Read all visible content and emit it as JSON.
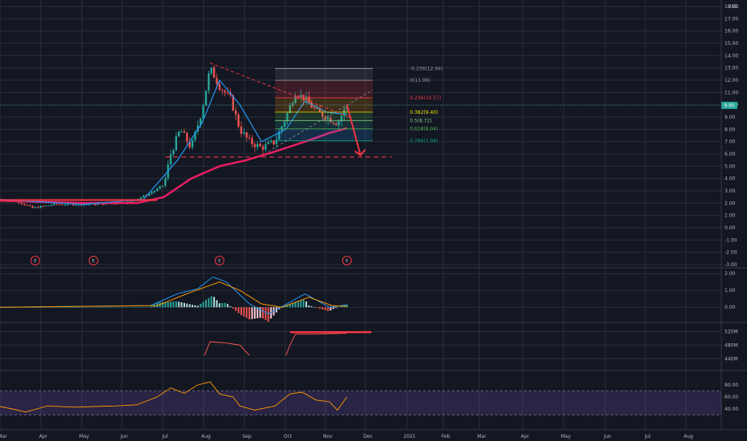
{
  "header": {
    "currency": "USD"
  },
  "price_badge": {
    "value": "9.95",
    "color": "#26a69a"
  },
  "events": [
    {
      "label": "E",
      "x": "Mar 27"
    },
    {
      "label": "E",
      "x": "May 9"
    },
    {
      "label": "E",
      "x": "Aug 10"
    },
    {
      "label": "E",
      "x": "Nov 12"
    }
  ],
  "fib_levels": [
    {
      "label": "-0.236(12.94)",
      "price": 12.94,
      "color": "#9598a1"
    },
    {
      "label": "0(11.99)",
      "price": 11.99,
      "color": "#9598a1"
    },
    {
      "label": "0.236(10.57)",
      "price": 10.57,
      "color": "#f23645"
    },
    {
      "label": "0.382(9.40)",
      "price": 9.4,
      "color": "#f7e600"
    },
    {
      "label": "0.5(8.72)",
      "price": 8.72,
      "color": "#81c784"
    },
    {
      "label": "0.618(8.04)",
      "price": 8.04,
      "color": "#4caf50"
    },
    {
      "label": "0.786(7.08)",
      "price": 7.08,
      "color": "#089981"
    }
  ],
  "colors": {
    "background": "#131722",
    "grid": "#2a2e39",
    "up": "#26a69a",
    "down": "#ef5350",
    "ma_short": "#2196f3",
    "ma_long": "#e91e63",
    "annotation": "#f23645",
    "rsi_line": "#ff9800",
    "rsi_band": "#7e57c2"
  },
  "chart_data": [
    {
      "type": "candlestick",
      "panel": "price",
      "y_unit": "USD",
      "ylim": [
        -3.0,
        18.0
      ],
      "y_ticks": [
        "18.00",
        "17.00",
        "16.00",
        "15.00",
        "14.00",
        "13.00",
        "12.00",
        "11.00",
        "10.00",
        "9.00",
        "8.00",
        "7.00",
        "6.00",
        "5.00",
        "4.00",
        "3.00",
        "2.00",
        "1.00",
        "0.00",
        "-1.00",
        "-2.00",
        "-3.00"
      ],
      "x_ticks": [
        "Mar",
        "Apr",
        "May",
        "Jun",
        "Jul",
        "Aug",
        "Sep",
        "Oct",
        "Nov",
        "Dec",
        "2021",
        "Feb",
        "Mar",
        "Apr",
        "May",
        "Jun",
        "Jul",
        "Aug"
      ],
      "x_range": [
        "Mar 1",
        "Aug 31"
      ],
      "approx_close": [
        [
          "Mar 1",
          2.3
        ],
        [
          "Mar 15",
          2.1
        ],
        [
          "Mar 25",
          1.6
        ],
        [
          "Apr 10",
          1.9
        ],
        [
          "Apr 25",
          1.9
        ],
        [
          "May 10",
          1.9
        ],
        [
          "May 25",
          2.0
        ],
        [
          "Jun 5",
          2.1
        ],
        [
          "Jun 20",
          2.8
        ],
        [
          "Jun 30",
          3.5
        ],
        [
          "Jul 5",
          6.0
        ],
        [
          "Jul 12",
          8.0
        ],
        [
          "Jul 20",
          6.5
        ],
        [
          "Jul 28",
          9.5
        ],
        [
          "Aug 3",
          13.0
        ],
        [
          "Aug 10",
          11.5
        ],
        [
          "Aug 18",
          10.5
        ],
        [
          "Aug 25",
          8.0
        ],
        [
          "Sep 1",
          7.0
        ],
        [
          "Sep 10",
          6.5
        ],
        [
          "Sep 20",
          7.0
        ],
        [
          "Sep 28",
          9.0
        ],
        [
          "Oct 5",
          11.0
        ],
        [
          "Oct 12",
          10.5
        ],
        [
          "Oct 20",
          9.5
        ],
        [
          "Oct 28",
          9.0
        ],
        [
          "Nov 5",
          8.5
        ],
        [
          "Nov 12",
          9.95
        ]
      ],
      "ma_short": [
        [
          "Mar 1",
          2.3
        ],
        [
          "May 1",
          1.9
        ],
        [
          "Jun 15",
          2.3
        ],
        [
          "Jul 10",
          5.5
        ],
        [
          "Jul 28",
          8.5
        ],
        [
          "Aug 10",
          12.0
        ],
        [
          "Aug 25",
          10.0
        ],
        [
          "Sep 10",
          7.0
        ],
        [
          "Sep 28",
          8.0
        ],
        [
          "Oct 12",
          10.3
        ],
        [
          "Oct 28",
          9.4
        ],
        [
          "Nov 12",
          9.2
        ]
      ],
      "ma_long": [
        [
          "Mar 1",
          2.2
        ],
        [
          "May 1",
          2.0
        ],
        [
          "Jun 10",
          2.0
        ],
        [
          "Jun 30",
          2.5
        ],
        [
          "Jul 20",
          4.0
        ],
        [
          "Aug 10",
          5.0
        ],
        [
          "Aug 30",
          5.5
        ],
        [
          "Sep 20",
          6.2
        ],
        [
          "Oct 12",
          7.0
        ],
        [
          "Oct 30",
          7.7
        ],
        [
          "Nov 12",
          8.1
        ]
      ],
      "annotations": {
        "support_line": 5.75,
        "arrow": {
          "from": [
            "Nov 12",
            10.0
          ],
          "to": [
            "Nov 22",
            5.9
          ]
        },
        "fib_box": {
          "x_start": "Sep 20",
          "x_end": "Dec 1",
          "top": 12.94,
          "bottom": 7.08
        }
      }
    },
    {
      "type": "macd",
      "panel": "macd",
      "ylim": [
        -0.8,
        2.2
      ],
      "y_ticks": [
        "2.00",
        "1.00",
        "0.00"
      ],
      "macd_line": [
        [
          "Mar 1",
          0.0
        ],
        [
          "Jun 20",
          0.1
        ],
        [
          "Jul 10",
          0.8
        ],
        [
          "Jul 25",
          1.1
        ],
        [
          "Aug 5",
          1.8
        ],
        [
          "Aug 15",
          1.5
        ],
        [
          "Sep 1",
          0.2
        ],
        [
          "Sep 15",
          -0.4
        ],
        [
          "Oct 1",
          0.3
        ],
        [
          "Oct 12",
          0.8
        ],
        [
          "Oct 30",
          0.0
        ],
        [
          "Nov 12",
          0.15
        ]
      ],
      "signal_line": [
        [
          "Mar 1",
          0.0
        ],
        [
          "Jun 25",
          0.1
        ],
        [
          "Jul 20",
          0.9
        ],
        [
          "Aug 10",
          1.5
        ],
        [
          "Aug 25",
          1.0
        ],
        [
          "Sep 10",
          0.2
        ],
        [
          "Sep 25",
          0.0
        ],
        [
          "Oct 15",
          0.6
        ],
        [
          "Nov 1",
          0.1
        ],
        [
          "Nov 12",
          0.05
        ]
      ]
    },
    {
      "type": "line",
      "panel": "volume",
      "ylim": [
        410,
        540
      ],
      "y_ticks": [
        "520M",
        "480M",
        "440M"
      ],
      "values": [
        [
          "Jul 30",
          450
        ],
        [
          "Aug 3",
          490
        ],
        [
          "Aug 15",
          486
        ],
        [
          "Aug 25",
          480
        ],
        [
          "Sep 1",
          450
        ],
        [
          "Sep 28",
          450
        ],
        [
          "Oct 1",
          480
        ],
        [
          "Oct 5",
          512
        ],
        [
          "Oct 20",
          512
        ],
        [
          "Nov 12",
          515
        ]
      ],
      "annotations": {
        "hline": 518
      }
    },
    {
      "type": "line",
      "panel": "rsi",
      "ylim": [
        20,
        100
      ],
      "y_ticks": [
        "80.00",
        "60.00",
        "40.00"
      ],
      "band": [
        30,
        70
      ],
      "values": [
        [
          "Mar 1",
          44
        ],
        [
          "Mar 10",
          40
        ],
        [
          "Mar 20",
          35
        ],
        [
          "Apr 5",
          45
        ],
        [
          "Apr 25",
          43
        ],
        [
          "May 10",
          44
        ],
        [
          "May 25",
          45
        ],
        [
          "Jun 10",
          47
        ],
        [
          "Jun 25",
          60
        ],
        [
          "Jul 5",
          75
        ],
        [
          "Jul 15",
          66
        ],
        [
          "Jul 25",
          80
        ],
        [
          "Aug 3",
          85
        ],
        [
          "Aug 10",
          65
        ],
        [
          "Aug 20",
          60
        ],
        [
          "Aug 25",
          45
        ],
        [
          "Sep 5",
          38
        ],
        [
          "Sep 20",
          45
        ],
        [
          "Oct 1",
          65
        ],
        [
          "Oct 10",
          68
        ],
        [
          "Oct 20",
          55
        ],
        [
          "Oct 30",
          52
        ],
        [
          "Nov 5",
          38
        ],
        [
          "Nov 12",
          60
        ]
      ]
    }
  ]
}
